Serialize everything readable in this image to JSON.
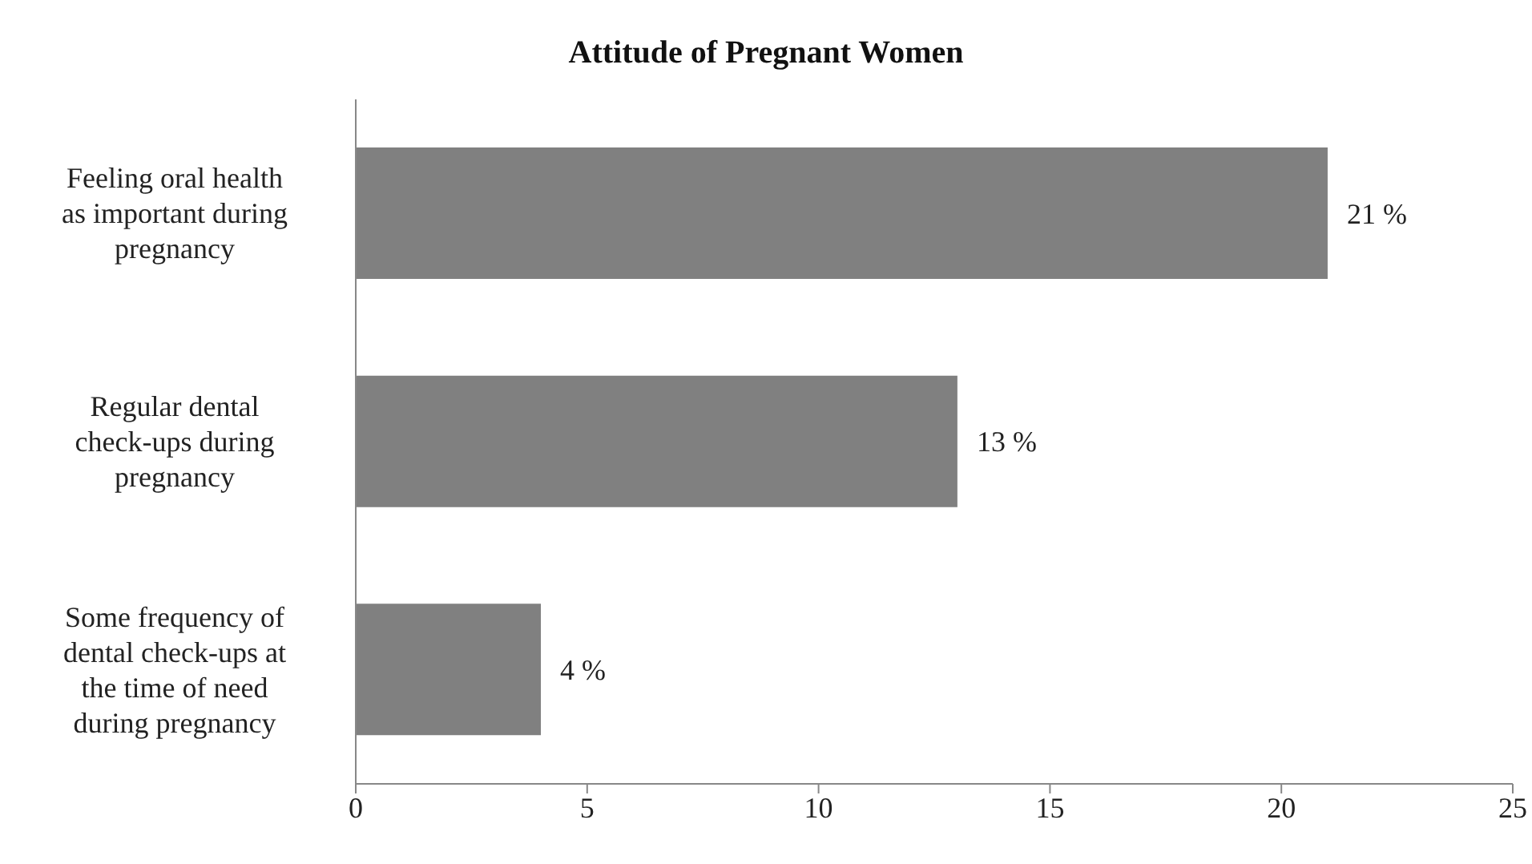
{
  "chart_data": {
    "type": "bar",
    "orientation": "horizontal",
    "title": "Attitude of Pregnant Women",
    "categories": [
      "Feeling oral health as important during pregnancy",
      "Regular dental check-ups during pregnancy",
      "Some frequency of dental check-ups at the time of need during pregnancy"
    ],
    "values": [
      21,
      13,
      4
    ],
    "value_labels": [
      "21 %",
      "13 %",
      "4 %"
    ],
    "color": "#808080",
    "xlim": [
      0,
      25
    ],
    "xticks": [
      0,
      5,
      10,
      15,
      20,
      25
    ],
    "grid": false,
    "legend": false
  }
}
